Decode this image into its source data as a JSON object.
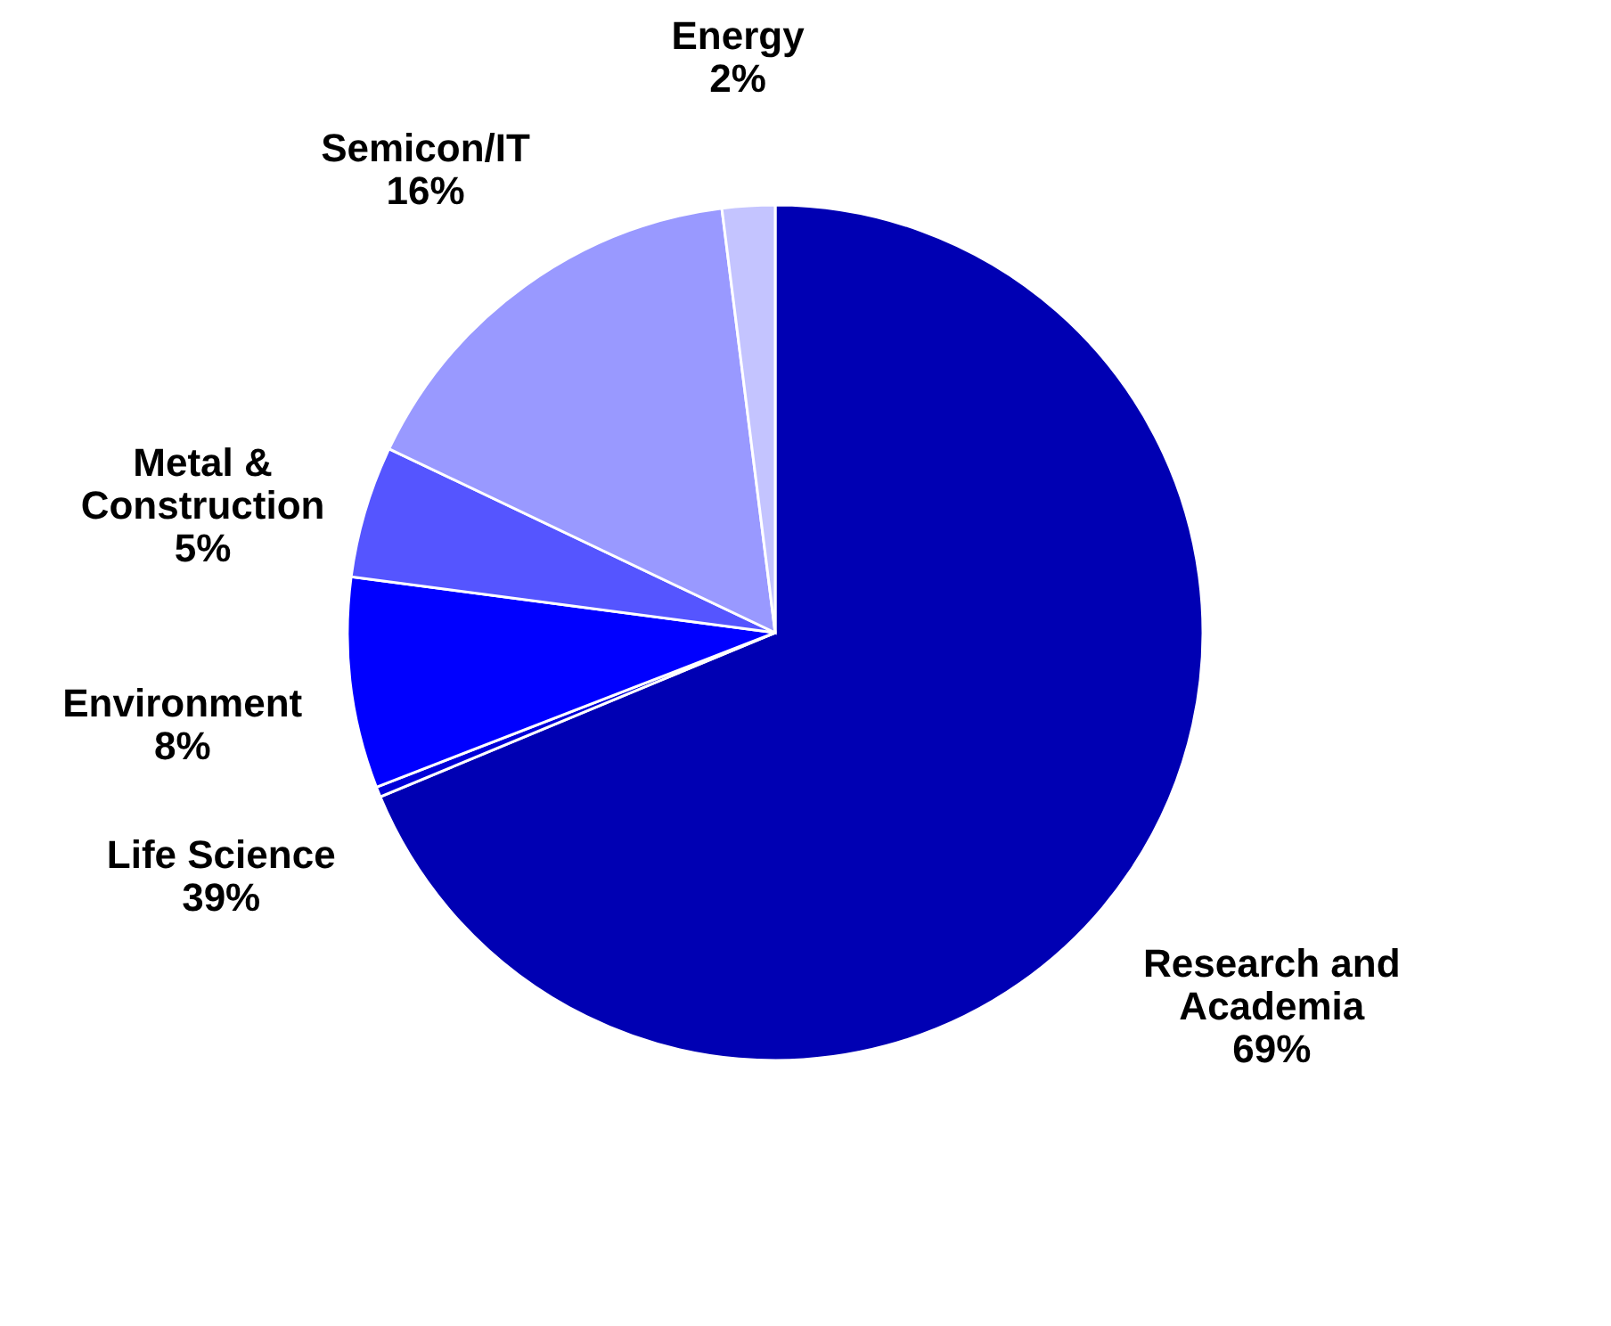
{
  "chart_data": {
    "type": "pie",
    "categories": [
      "Research and Academia",
      "Life Science",
      "Environment",
      "Metal & Construction",
      "Semicon/IT",
      "Energy"
    ],
    "values": [
      69,
      0.39,
      8,
      5,
      16,
      2
    ],
    "value_labels": [
      "69%",
      "39%",
      "8%",
      "5%",
      "16%",
      "2%"
    ],
    "colors": [
      "#0000b3",
      "#0000d9",
      "#0000ff",
      "#5555ff",
      "#9999ff",
      "#c4c4ff"
    ],
    "legend": false
  }
}
